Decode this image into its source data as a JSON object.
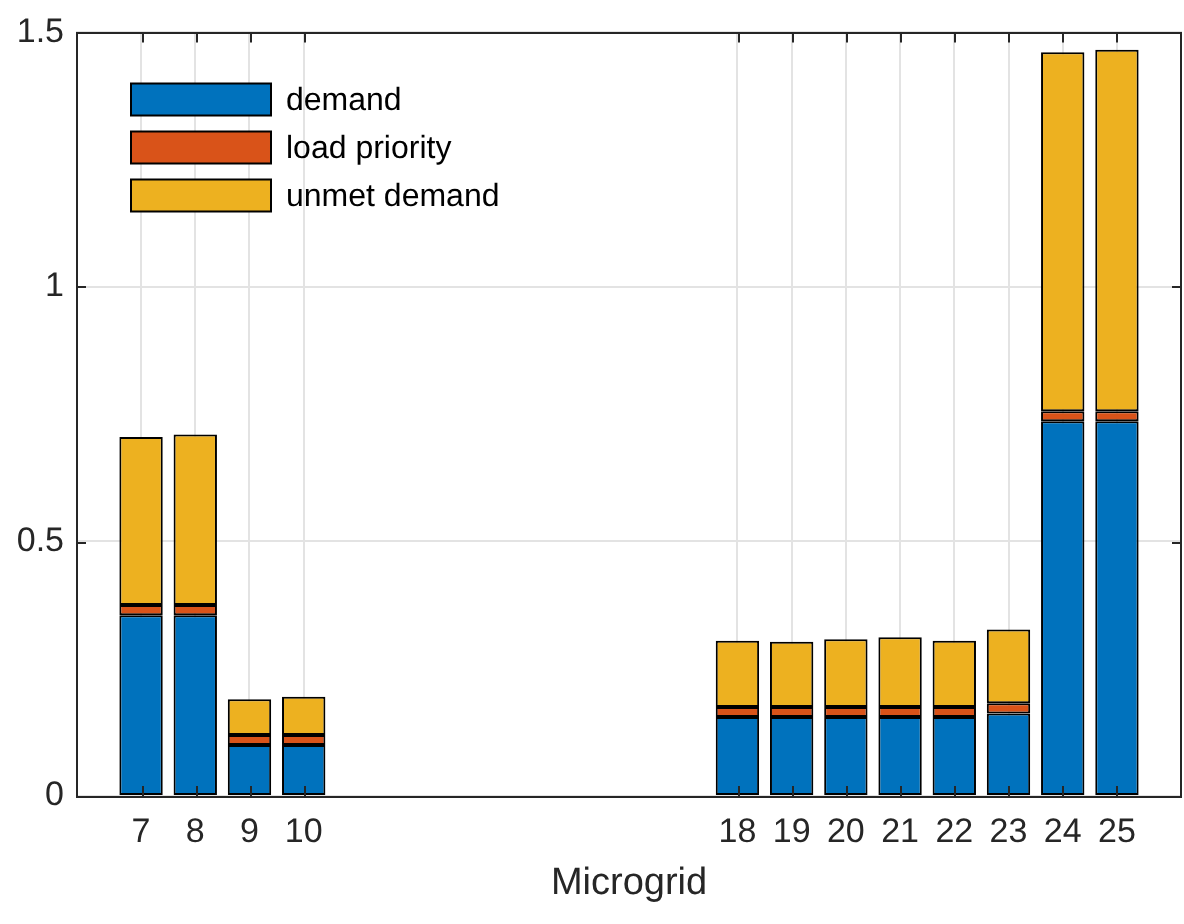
{
  "chart_data": {
    "type": "bar",
    "xlabel": "Microgrid",
    "stacked": true,
    "x": [
      7,
      8,
      9,
      10,
      18,
      19,
      20,
      21,
      22,
      23,
      24,
      25
    ],
    "series": [
      {
        "name": "demand",
        "color": "#0072bd",
        "values": [
          0.355,
          0.355,
          0.1,
          0.1,
          0.155,
          0.155,
          0.155,
          0.155,
          0.155,
          0.162,
          0.736,
          0.736
        ]
      },
      {
        "name": "load priority",
        "color": "#d95319",
        "values": [
          0.02,
          0.02,
          0.02,
          0.02,
          0.02,
          0.02,
          0.02,
          0.02,
          0.02,
          0.02,
          0.02,
          0.02
        ]
      },
      {
        "name": "unmet demand",
        "color": "#edb120",
        "values": [
          0.33,
          0.335,
          0.07,
          0.075,
          0.13,
          0.128,
          0.133,
          0.137,
          0.13,
          0.145,
          0.705,
          0.71
        ]
      }
    ],
    "xlim": [
      5.8,
      26.2
    ],
    "xticks": [
      7,
      8,
      9,
      10,
      18,
      19,
      20,
      21,
      22,
      23,
      24,
      25
    ],
    "ylim": [
      0,
      1.5
    ],
    "yticks": [
      0,
      0.5,
      1,
      1.5
    ],
    "grid": true,
    "legend": "top left"
  }
}
